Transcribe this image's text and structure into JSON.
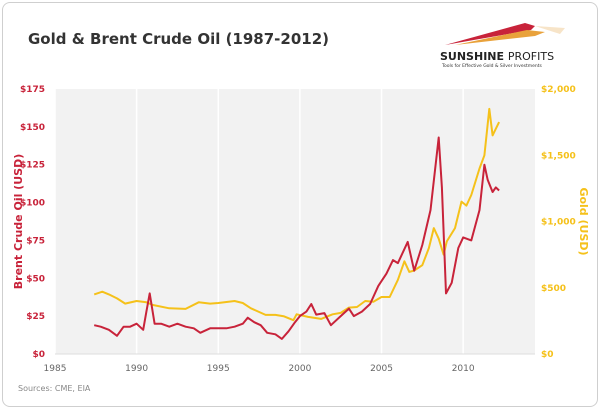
{
  "brand": {
    "name_bold": "SUNSHINE",
    "name_light": "PROFITS",
    "tagline": "Tools for Effective Gold & Silver Investments"
  },
  "source": "Sources: CME, EIA",
  "chart_data": {
    "type": "line",
    "title": "Gold & Brent Crude Oil (1987-2012)",
    "xlabel": "",
    "ylabel": "Brent Crude Oil (USD)",
    "y2label": "Gold (USD)",
    "xlim": [
      1985,
      2014.4
    ],
    "ylim": [
      0,
      175
    ],
    "y2lim": [
      0,
      2000
    ],
    "xticks": [
      1985,
      1990,
      1995,
      2000,
      2005,
      2010
    ],
    "yticks": [
      {
        "v": 0,
        "l": "$0"
      },
      {
        "v": 25,
        "l": "$25"
      },
      {
        "v": 50,
        "l": "$50"
      },
      {
        "v": 75,
        "l": "$75"
      },
      {
        "v": 100,
        "l": "$100"
      },
      {
        "v": 125,
        "l": "$125"
      },
      {
        "v": 150,
        "l": "$150"
      },
      {
        "v": 175,
        "l": "$175"
      }
    ],
    "y2ticks": [
      {
        "v": 0,
        "l": "$0"
      },
      {
        "v": 500,
        "l": "$500"
      },
      {
        "v": 1000,
        "l": "$1,000"
      },
      {
        "v": 1500,
        "l": "$1,500"
      },
      {
        "v": 2000,
        "l": "$2,000"
      }
    ],
    "grid": true,
    "colors": {
      "oil": "#c8233a",
      "gold": "#f5c11a"
    },
    "series": [
      {
        "name": "Brent Crude Oil",
        "axis": "left",
        "x": [
          1987.4,
          1987.8,
          1988.3,
          1988.8,
          1989.2,
          1989.6,
          1990.0,
          1990.4,
          1990.6,
          1990.8,
          1991.1,
          1991.5,
          1992.0,
          1992.5,
          1993.0,
          1993.5,
          1993.9,
          1994.5,
          1995.0,
          1995.5,
          1996.0,
          1996.5,
          1996.8,
          1997.2,
          1997.6,
          1998.0,
          1998.5,
          1998.9,
          1999.3,
          1999.7,
          2000.0,
          2000.4,
          2000.7,
          2001.0,
          2001.5,
          2001.9,
          2002.5,
          2003.0,
          2003.3,
          2003.8,
          2004.3,
          2004.8,
          2005.3,
          2005.7,
          2006.0,
          2006.6,
          2007.0,
          2007.5,
          2008.0,
          2008.5,
          2008.7,
          2008.95,
          2009.3,
          2009.7,
          2010.0,
          2010.5,
          2011.0,
          2011.3,
          2011.5,
          2011.8,
          2012.0,
          2012.2
        ],
        "y": [
          19,
          18,
          16,
          12,
          18,
          18,
          20,
          16,
          28,
          40,
          20,
          20,
          18,
          20,
          18,
          17,
          14,
          17,
          17,
          17,
          18,
          20,
          24,
          21,
          19,
          14,
          13,
          10,
          15,
          21,
          25,
          28,
          33,
          26,
          27,
          19,
          25,
          30,
          25,
          28,
          33,
          45,
          53,
          62,
          60,
          74,
          55,
          72,
          95,
          143,
          110,
          40,
          47,
          70,
          77,
          75,
          95,
          125,
          115,
          107,
          110,
          108
        ]
      },
      {
        "name": "Gold",
        "axis": "right",
        "x": [
          1987.4,
          1987.9,
          1988.3,
          1988.8,
          1989.3,
          1990.0,
          1990.6,
          1991.0,
          1992.0,
          1993.0,
          1993.8,
          1994.5,
          1995.0,
          1996.0,
          1996.5,
          1997.0,
          1997.9,
          1998.5,
          1999.0,
          1999.6,
          1999.8,
          2000.5,
          2001.3,
          2002.0,
          2002.5,
          2003.0,
          2003.5,
          2004.0,
          2004.5,
          2005.0,
          2005.5,
          2006.0,
          2006.4,
          2006.7,
          2007.0,
          2007.5,
          2007.9,
          2008.2,
          2008.5,
          2008.8,
          2009.0,
          2009.5,
          2009.9,
          2010.2,
          2010.5,
          2011.0,
          2011.3,
          2011.6,
          2011.8,
          2012.0,
          2012.2
        ],
        "y": [
          450,
          470,
          450,
          420,
          380,
          400,
          390,
          370,
          345,
          340,
          390,
          380,
          385,
          400,
          385,
          345,
          295,
          295,
          285,
          255,
          300,
          280,
          265,
          300,
          310,
          350,
          355,
          400,
          395,
          430,
          430,
          560,
          700,
          620,
          630,
          670,
          800,
          950,
          870,
          750,
          850,
          950,
          1150,
          1120,
          1200,
          1400,
          1500,
          1850,
          1650,
          1700,
          1750
        ]
      }
    ]
  }
}
